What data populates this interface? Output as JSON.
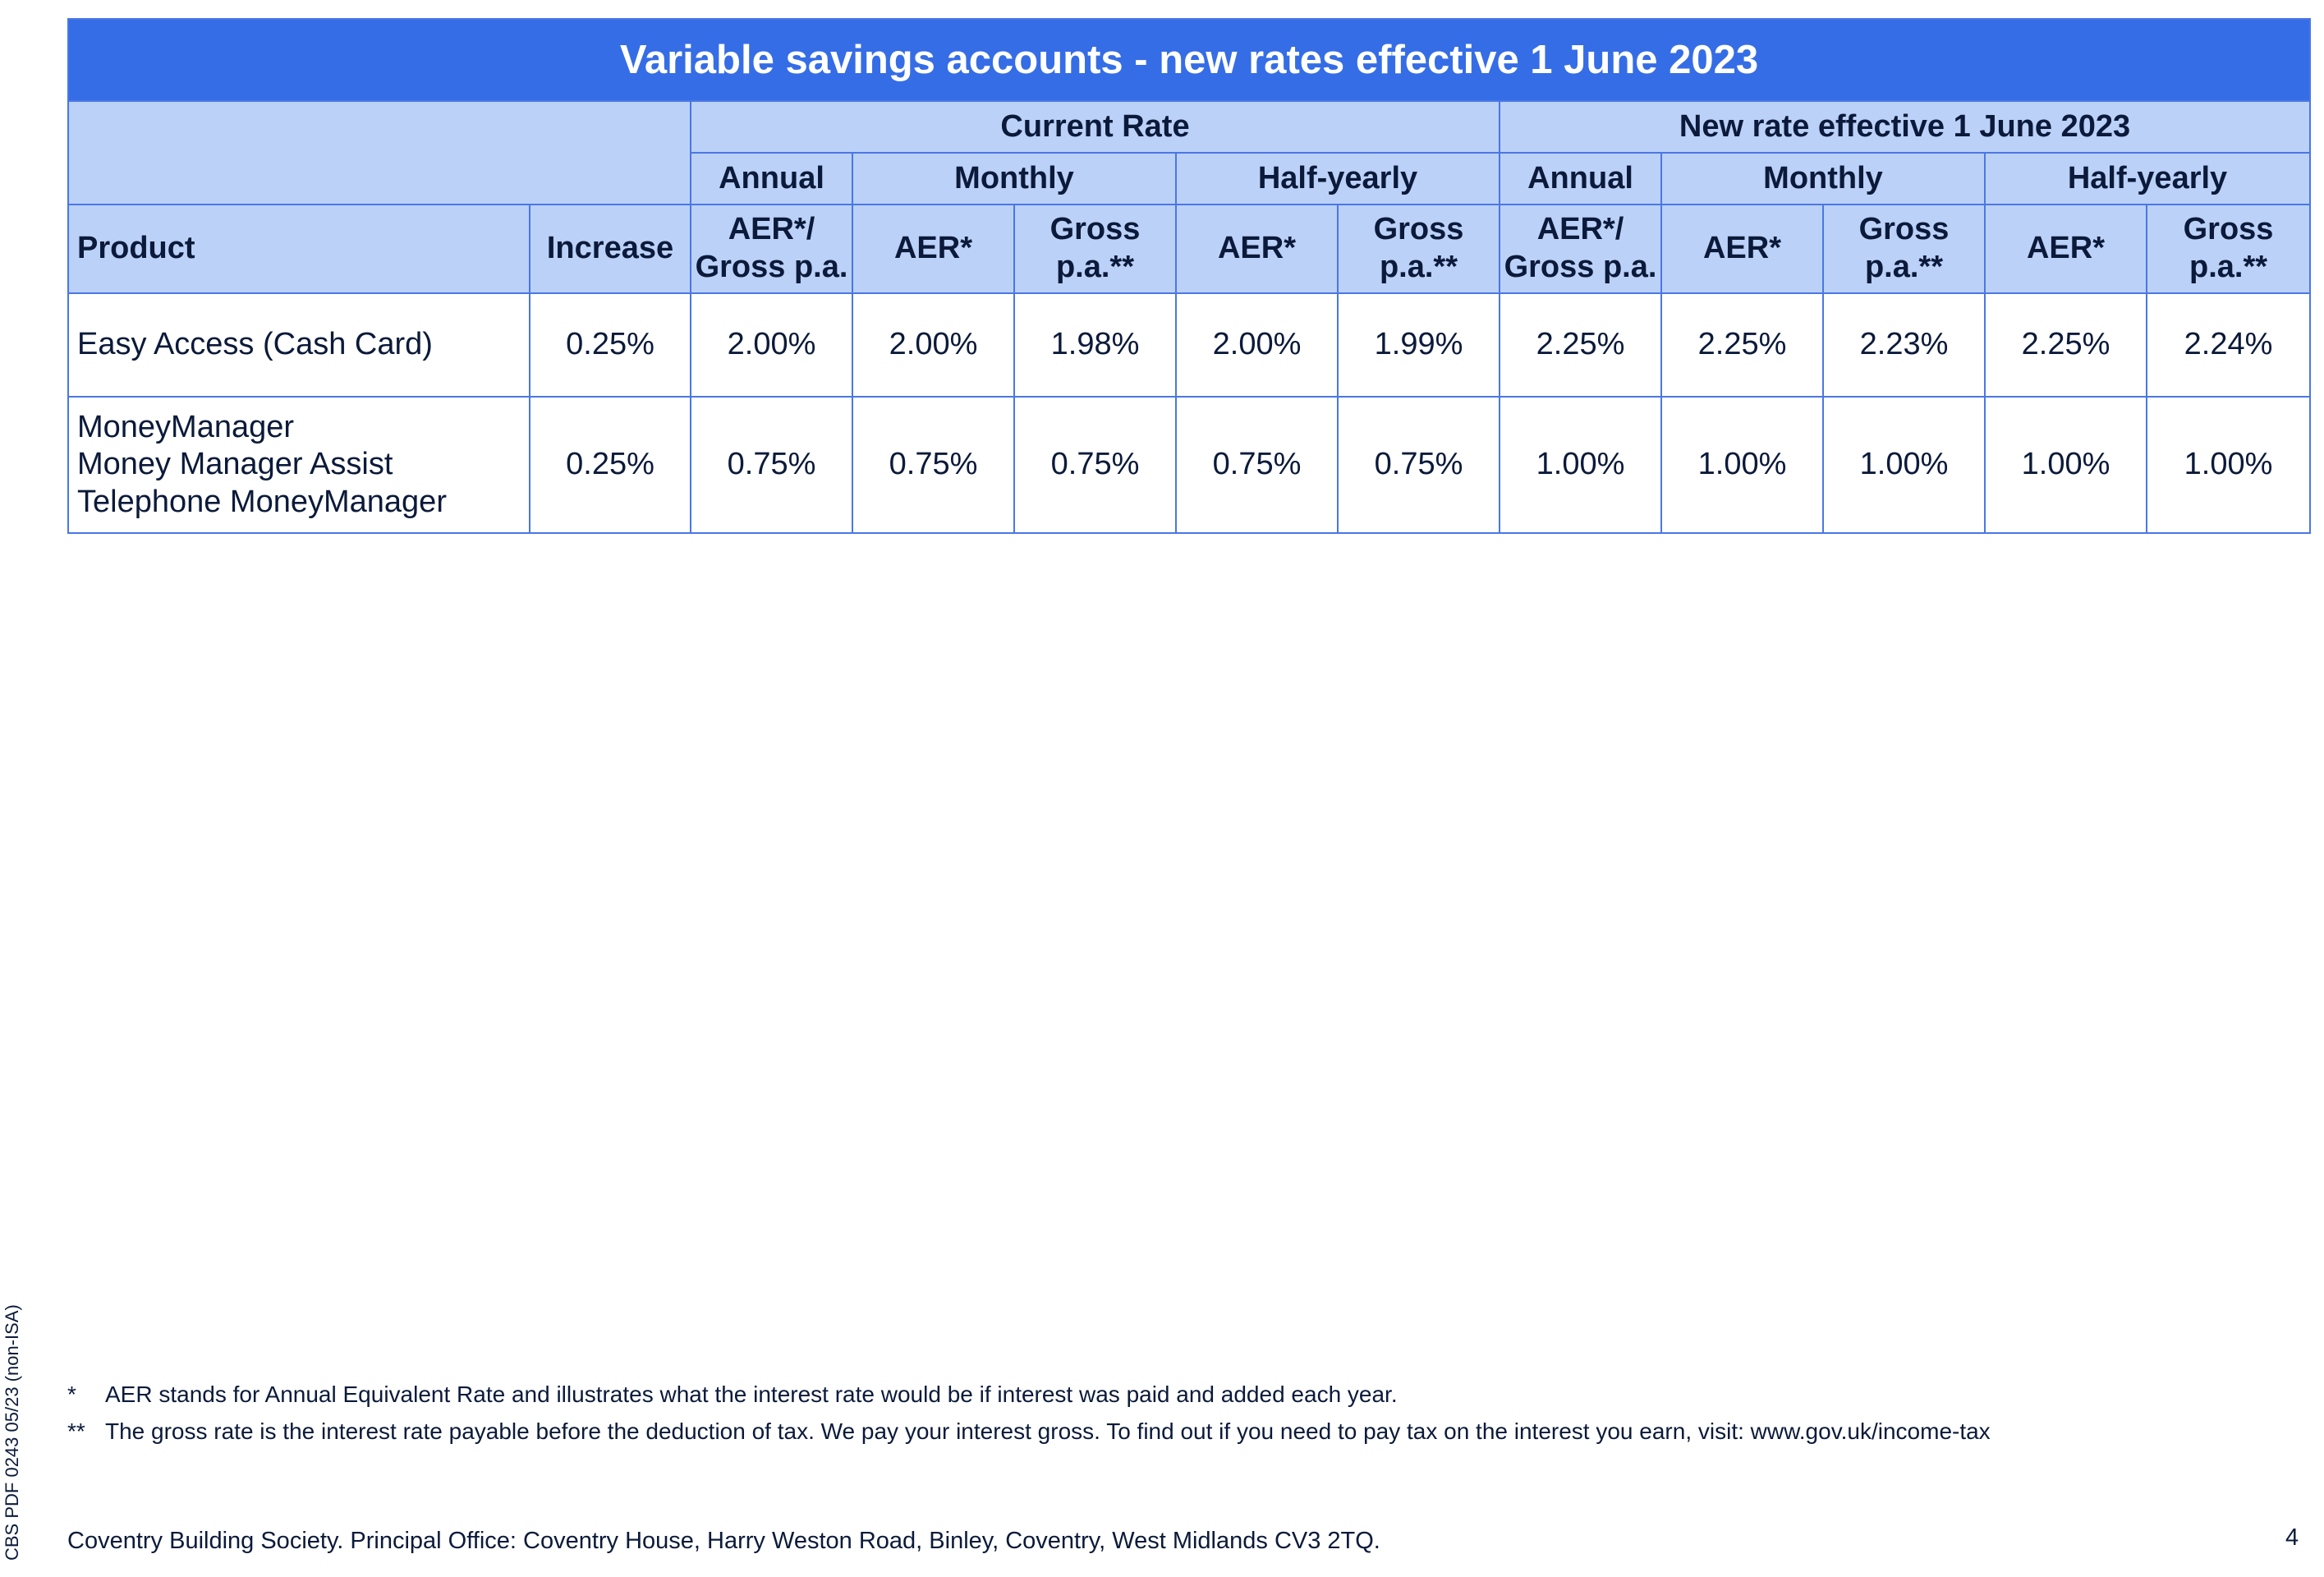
{
  "table": {
    "title": "Variable savings accounts - new rates effective 1 June 2023",
    "groups": {
      "current": "Current Rate",
      "new": "New rate effective 1 June 2023"
    },
    "frequencies": {
      "annual": "Annual",
      "monthly": "Monthly",
      "half_yearly": "Half-yearly"
    },
    "columns": {
      "product": "Product",
      "increase": "Increase",
      "aer_gross_l1": "AER*/",
      "aer_gross_l2": "Gross p.a.",
      "aer": "AER*",
      "gross_l1": "Gross",
      "gross_l2": "p.a.**"
    },
    "rows": [
      {
        "product_lines": [
          "Easy Access (Cash Card)"
        ],
        "increase": "0.25%",
        "values": [
          "2.00%",
          "2.00%",
          "1.98%",
          "2.00%",
          "1.99%",
          "2.25%",
          "2.25%",
          "2.23%",
          "2.25%",
          "2.24%"
        ]
      },
      {
        "product_lines": [
          "MoneyManager",
          "Money Manager Assist",
          "Telephone MoneyManager"
        ],
        "increase": "0.25%",
        "values": [
          "0.75%",
          "0.75%",
          "0.75%",
          "0.75%",
          "0.75%",
          "1.00%",
          "1.00%",
          "1.00%",
          "1.00%",
          "1.00%"
        ]
      }
    ]
  },
  "footnotes": [
    {
      "mark": "*",
      "text": "AER stands for Annual Equivalent Rate and illustrates what the interest rate would be if interest was paid and added each year."
    },
    {
      "mark": "**",
      "text": "The gross rate is the interest rate payable before the deduction of tax. We pay your interest gross. To find out if you need to pay tax on the interest you earn, visit: www.gov.uk/income-tax"
    }
  ],
  "footer": {
    "address": "Coventry Building Society. Principal Office: Coventry House, Harry Weston Road, Binley, Coventry, West Midlands CV3 2TQ.",
    "page_number": "4",
    "side_reference": "CBS PDF 0243 05/23 (non-ISA)"
  }
}
